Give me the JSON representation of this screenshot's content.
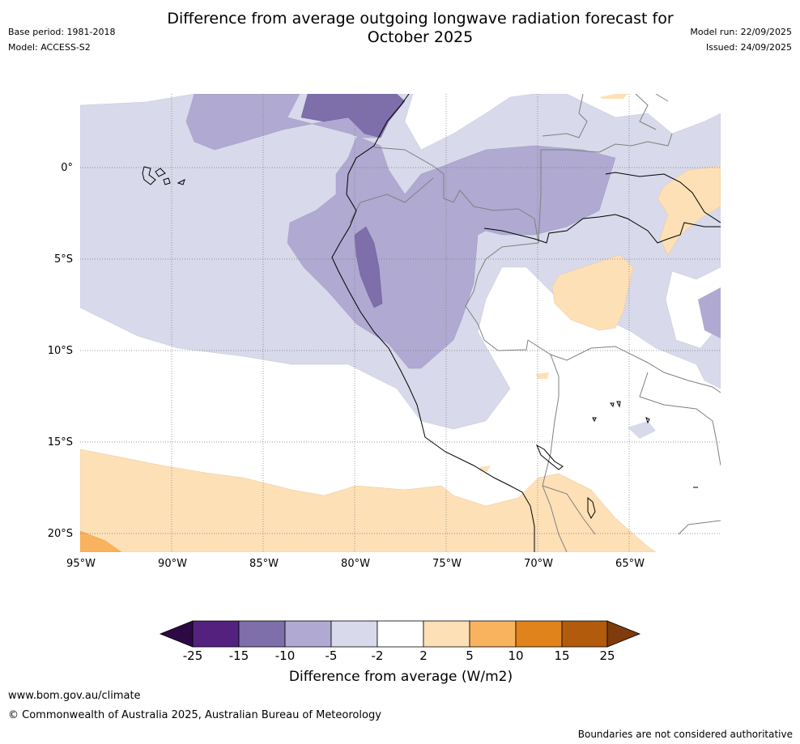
{
  "header": {
    "title_line1": "Difference from average outgoing longwave radiation forecast for",
    "title_line2": "October 2025",
    "base_period": "Base period: 1981-2018",
    "model": "Model: ACCESS-S2",
    "model_run": "Model run: 22/09/2025",
    "issued": "Issued: 24/09/2025"
  },
  "map": {
    "region": "Western South America and eastern Pacific",
    "lat_labels": [
      "0°",
      "5°S",
      "10°S",
      "15°S",
      "20°S"
    ],
    "lon_labels": [
      "95°W",
      "90°W",
      "85°W",
      "80°W",
      "75°W",
      "70°W",
      "65°W"
    ]
  },
  "colorbar": {
    "title": "Difference from average (W/m2)",
    "ticks": [
      "-25",
      "-15",
      "-10",
      "-5",
      "-2",
      "2",
      "5",
      "10",
      "15",
      "25"
    ],
    "colors": {
      "below_min": "#2d0a45",
      "c1": "#54217f",
      "c2": "#7e6eaa",
      "c3": "#b0a9d1",
      "c4": "#d8d9ea",
      "c5": "#ffffff",
      "c6": "#fde0b6",
      "c7": "#f9b35f",
      "c8": "#e0831b",
      "c9": "#b25b0c",
      "above_max": "#7f3b0b"
    }
  },
  "footer": {
    "website": "www.bom.gov.au/climate",
    "copyright": "© Commonwealth of Australia 2025, Australian Bureau of Meteorology",
    "disclaimer": "Boundaries are not considered authoritative"
  }
}
